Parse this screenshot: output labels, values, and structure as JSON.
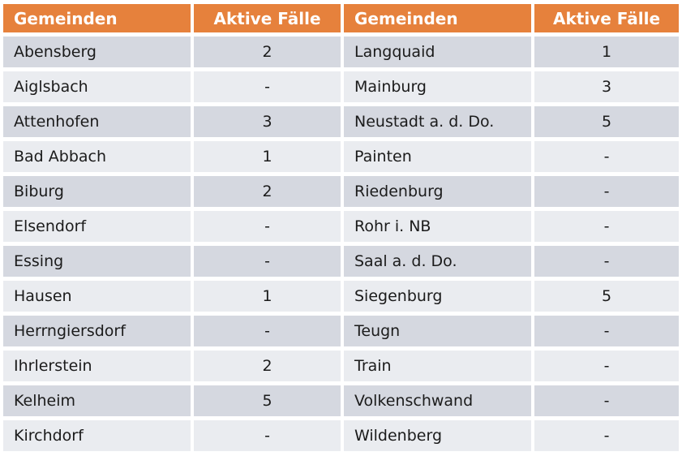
{
  "colors": {
    "header_bg": "#E6813C",
    "header_text": "#FFFFFF",
    "row_odd": "#D5D8E0",
    "row_even": "#EAECF0",
    "cell_text": "#1B1B1B"
  },
  "table": {
    "headers": [
      "Gemeinden",
      "Aktive Fälle",
      "Gemeinden",
      "Aktive Fälle"
    ],
    "rows": [
      [
        "Abensberg",
        "2",
        "Langquaid",
        "1"
      ],
      [
        "Aiglsbach",
        "-",
        "Mainburg",
        "3"
      ],
      [
        "Attenhofen",
        "3",
        "Neustadt a. d. Do.",
        "5"
      ],
      [
        "Bad Abbach",
        "1",
        "Painten",
        "-"
      ],
      [
        "Biburg",
        "2",
        "Riedenburg",
        "-"
      ],
      [
        "Elsendorf",
        "-",
        "Rohr i. NB",
        "-"
      ],
      [
        "Essing",
        "-",
        "Saal a. d. Do.",
        "-"
      ],
      [
        "Hausen",
        "1",
        "Siegenburg",
        "5"
      ],
      [
        "Herrngiersdorf",
        "-",
        "Teugn",
        "-"
      ],
      [
        "Ihrlerstein",
        "2",
        "Train",
        "-"
      ],
      [
        "Kelheim",
        "5",
        "Volkenschwand",
        "-"
      ],
      [
        "Kirchdorf",
        "-",
        "Wildenberg",
        "-"
      ]
    ]
  }
}
